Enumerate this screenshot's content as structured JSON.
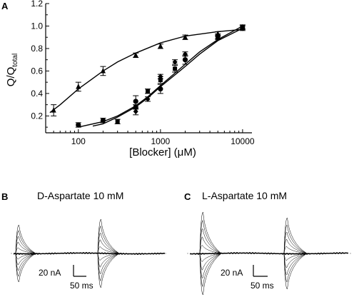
{
  "panels": {
    "a_label": "A",
    "b_label": "B",
    "c_label": "C",
    "b_title": "D-Aspartate 10 mM",
    "c_title": "L-Aspartate 10 mM"
  },
  "scale_bars": {
    "current": "20 nA",
    "time": "50 ms"
  },
  "chart_data": {
    "type": "scatter",
    "x_scale": "log",
    "xlim": [
      40,
      13000
    ],
    "ylim": [
      0.05,
      1.2
    ],
    "x_ticks": [
      100,
      1000,
      10000
    ],
    "x_tick_labels": [
      "100",
      "1000",
      "10000"
    ],
    "y_ticks": [
      0.2,
      0.4,
      0.6,
      0.8,
      1.0,
      1.2
    ],
    "y_tick_labels": [
      "0.2",
      "0.4",
      "0.6",
      "0.8",
      "1.0",
      "1.2"
    ],
    "xlabel_main": "[Blocker] (",
    "xlabel_mu": "μ",
    "xlabel_end": "M)",
    "ylabel_main": "Q/Q",
    "ylabel_sub": "total",
    "series": [
      {
        "marker": "triangle",
        "points": [
          {
            "x": 50,
            "y": 0.25,
            "err": 0.05
          },
          {
            "x": 100,
            "y": 0.46,
            "err": 0.04
          },
          {
            "x": 200,
            "y": 0.6,
            "err": 0.04
          },
          {
            "x": 500,
            "y": 0.74,
            "err": 0.02
          },
          {
            "x": 1000,
            "y": 0.82,
            "err": 0.02
          },
          {
            "x": 2000,
            "y": 0.9,
            "err": 0.02
          },
          {
            "x": 5000,
            "y": 0.93,
            "err": 0.02
          },
          {
            "x": 10000,
            "y": 0.99,
            "err": 0.02
          }
        ],
        "fit": [
          [
            45,
            0.23
          ],
          [
            60,
            0.3
          ],
          [
            100,
            0.44
          ],
          [
            200,
            0.6
          ],
          [
            300,
            0.68
          ],
          [
            500,
            0.76
          ],
          [
            1000,
            0.85
          ],
          [
            2000,
            0.91
          ],
          [
            5000,
            0.95
          ],
          [
            10000,
            0.97
          ]
        ]
      },
      {
        "marker": "circle",
        "points": [
          {
            "x": 100,
            "y": 0.12,
            "err": 0.02
          },
          {
            "x": 200,
            "y": 0.16,
            "err": 0.02
          },
          {
            "x": 500,
            "y": 0.33,
            "err": 0.05
          },
          {
            "x": 1000,
            "y": 0.44,
            "err": 0.04
          },
          {
            "x": 2000,
            "y": 0.7,
            "err": 0.04
          },
          {
            "x": 5000,
            "y": 0.91,
            "err": 0.02
          },
          {
            "x": 10000,
            "y": 0.98,
            "err": 0.02
          }
        ],
        "fit": [
          [
            100,
            0.1
          ],
          [
            200,
            0.15
          ],
          [
            300,
            0.2
          ],
          [
            500,
            0.29
          ],
          [
            700,
            0.37
          ],
          [
            1000,
            0.47
          ],
          [
            2000,
            0.66
          ],
          [
            3000,
            0.77
          ],
          [
            5000,
            0.88
          ],
          [
            10000,
            1.0
          ]
        ]
      },
      {
        "marker": "square",
        "points": [
          {
            "x": 300,
            "y": 0.15,
            "err": 0.02
          },
          {
            "x": 500,
            "y": 0.28,
            "err": 0.02
          },
          {
            "x": 700,
            "y": 0.42,
            "err": 0.02
          },
          {
            "x": 1000,
            "y": 0.52,
            "err": 0.03
          },
          {
            "x": 1500,
            "y": 0.62,
            "err": 0.03
          },
          {
            "x": 5000,
            "y": 0.9,
            "err": 0.02
          },
          {
            "x": 10000,
            "y": 0.99,
            "err": 0.02
          }
        ],
        "fit": [
          [
            150,
            0.11
          ],
          [
            200,
            0.13
          ],
          [
            300,
            0.19
          ],
          [
            500,
            0.28
          ],
          [
            700,
            0.36
          ],
          [
            1000,
            0.46
          ],
          [
            2000,
            0.64
          ],
          [
            3000,
            0.75
          ],
          [
            5000,
            0.87
          ],
          [
            10000,
            0.98
          ]
        ]
      },
      {
        "marker": "diamond",
        "points": [
          {
            "x": 500,
            "y": 0.24,
            "err": 0.03
          },
          {
            "x": 700,
            "y": 0.35,
            "err": 0.02
          },
          {
            "x": 1000,
            "y": 0.55,
            "err": 0.02
          },
          {
            "x": 1500,
            "y": 0.68,
            "err": 0.02
          },
          {
            "x": 2000,
            "y": 0.75,
            "err": 0.02
          }
        ],
        "fit": []
      }
    ]
  }
}
